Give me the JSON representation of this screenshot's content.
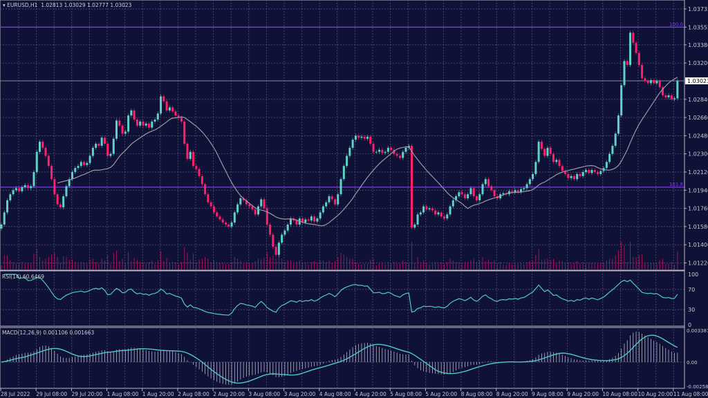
{
  "header": {
    "symbol": "EURUSD,H1",
    "open": "1.02813",
    "high": "1.03029",
    "low": "1.02777",
    "close": "1.03023"
  },
  "colors": {
    "background": "#0f1136",
    "bull": "#5fd3c8",
    "bear": "#ff1f6a",
    "ma": "#9a9aa6",
    "fib": "#7b3fe0",
    "grid": "#5a5d80",
    "indicator": "#4fc9c9"
  },
  "chart_data": [
    {
      "type": "candlestick",
      "timeframe": "H1",
      "price_axis": {
        "ticks": [
          "1.03735",
          "1.03555",
          "1.03380",
          "1.03200",
          "1.02840",
          "1.02660",
          "1.02480",
          "1.02300",
          "1.02120",
          "1.01940",
          "1.01760",
          "1.01580",
          "1.01400",
          "1.01220"
        ],
        "range": [
          1.011,
          1.038
        ],
        "current_price_label": "1.03023"
      },
      "time_axis": {
        "ticks": [
          "28 Jul 2022",
          "29 Jul 08:00",
          "29 Jul 20:00",
          "1 Aug 08:00",
          "1 Aug 20:00",
          "2 Aug 08:00",
          "2 Aug 20:00",
          "3 Aug 08:00",
          "3 Aug 20:00",
          "4 Aug 08:00",
          "4 Aug 20:00",
          "5 Aug 08:00",
          "5 Aug 20:00",
          "8 Aug 08:00",
          "8 Aug 20:00",
          "9 Aug 08:00",
          "9 Aug 20:00",
          "10 Aug 08:00",
          "10 Aug 20:00",
          "11 Aug 08:00"
        ]
      },
      "levels": [
        {
          "label": "100.0",
          "price": 1.03555
        },
        {
          "label": "161.8",
          "price": 1.0197
        }
      ],
      "moving_average_period": 20,
      "close": [
        1.016,
        1.0172,
        1.0184,
        1.019,
        1.0194,
        1.0196,
        1.0193,
        1.0197,
        1.0199,
        1.0196,
        1.0198,
        1.0212,
        1.0232,
        1.0242,
        1.0236,
        1.0228,
        1.0218,
        1.0205,
        1.019,
        1.018,
        1.0177,
        1.0188,
        1.0198,
        1.0205,
        1.0212,
        1.0216,
        1.0218,
        1.0222,
        1.0219,
        1.0221,
        1.0228,
        1.0236,
        1.024,
        1.0238,
        1.0246,
        1.024,
        1.0228,
        1.023,
        1.0245,
        1.0263,
        1.0258,
        1.025,
        1.0252,
        1.0268,
        1.0273,
        1.0264,
        1.0258,
        1.0262,
        1.0258,
        1.026,
        1.0256,
        1.0262,
        1.0264,
        1.027,
        1.0287,
        1.0282,
        1.0273,
        1.0276,
        1.0272,
        1.0268,
        1.0266,
        1.0262,
        1.024,
        1.0225,
        1.0232,
        1.0218,
        1.0215,
        1.0208,
        1.02,
        1.019,
        1.0182,
        1.0178,
        1.0172,
        1.0168,
        1.0165,
        1.0162,
        1.016,
        1.0158,
        1.0162,
        1.0172,
        1.018,
        1.0186,
        1.0184,
        1.018,
        1.0178,
        1.0175,
        1.017,
        1.0178,
        1.0185,
        1.0176,
        1.016,
        1.015,
        1.0138,
        1.013,
        1.0142,
        1.015,
        1.0154,
        1.016,
        1.0166,
        1.0164,
        1.016,
        1.0166,
        1.0162,
        1.0165,
        1.0164,
        1.0168,
        1.0163,
        1.0166,
        1.0172,
        1.0178,
        1.0182,
        1.0188,
        1.0185,
        1.018,
        1.019,
        1.0205,
        1.0218,
        1.0228,
        1.0236,
        1.0244,
        1.0248,
        1.0246,
        1.0247,
        1.0245,
        1.0247,
        1.024,
        1.0232,
        1.0232,
        1.0234,
        1.0231,
        1.0232,
        1.0236,
        1.0234,
        1.023,
        1.0228,
        1.0226,
        1.0232,
        1.0236,
        1.0238,
        1.0157,
        1.016,
        1.017,
        1.0172,
        1.0178,
        1.0175,
        1.0176,
        1.0174,
        1.017,
        1.0172,
        1.0168,
        1.0166,
        1.017,
        1.0178,
        1.0184,
        1.0188,
        1.0192,
        1.019,
        1.0186,
        1.019,
        1.0196,
        1.0188,
        1.0184,
        1.019,
        1.02,
        1.0205,
        1.0198,
        1.0194,
        1.0188,
        1.0186,
        1.019,
        1.0191,
        1.019,
        1.0193,
        1.0192,
        1.0194,
        1.0192,
        1.0195,
        1.0196,
        1.02,
        1.0205,
        1.021,
        1.0222,
        1.0242,
        1.0235,
        1.0228,
        1.0236,
        1.023,
        1.0222,
        1.0224,
        1.0218,
        1.0213,
        1.021,
        1.0206,
        1.0208,
        1.0205,
        1.021,
        1.0208,
        1.0212,
        1.0214,
        1.0211,
        1.0214,
        1.0212,
        1.021,
        1.0213,
        1.0216,
        1.0222,
        1.023,
        1.0238,
        1.025,
        1.0268,
        1.0298,
        1.0322,
        1.0318,
        1.035,
        1.034,
        1.033,
        1.0318,
        1.0305,
        1.0302,
        1.03,
        1.0303,
        1.03,
        1.0302,
        1.0296,
        1.0288,
        1.0286,
        1.0288,
        1.0284,
        1.0285,
        1.03023
      ]
    },
    {
      "type": "line",
      "indicator": "RSI(14)",
      "label": "RSI(14) 60.6469",
      "current_value": 60.6469,
      "levels": [
        70,
        30
      ],
      "axis_ticks": [
        "100",
        "70",
        "30",
        "0"
      ],
      "ylim": [
        0,
        100
      ]
    },
    {
      "type": "bar+line",
      "indicator": "MACD(12,26,9)",
      "label": "MACD(12,26,9) 0.001106 0.001663",
      "main": 0.001106,
      "signal": 0.001663,
      "axis_ticks": [
        "0.003387",
        "0.00",
        "-0.002584"
      ],
      "ylim": [
        -0.002584,
        0.003387
      ]
    }
  ]
}
